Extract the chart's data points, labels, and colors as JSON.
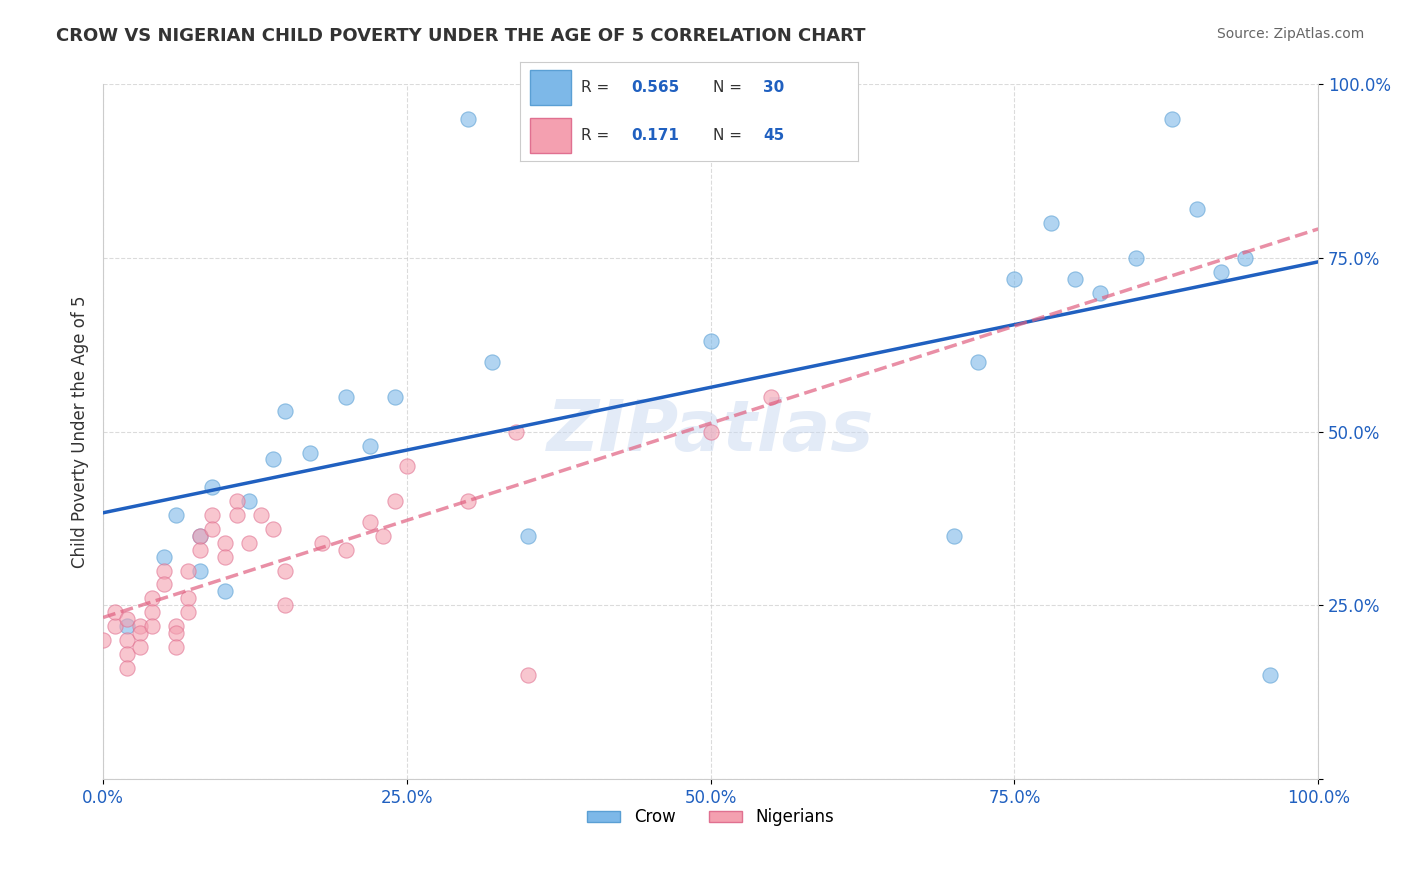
{
  "title": "CROW VS NIGERIAN CHILD POVERTY UNDER THE AGE OF 5 CORRELATION CHART",
  "source": "Source: ZipAtlas.com",
  "ylabel": "Child Poverty Under the Age of 5",
  "xlabel": "",
  "watermark": "ZIPatlas",
  "xlim": [
    0.0,
    1.0
  ],
  "ylim": [
    0.0,
    1.0
  ],
  "xticks": [
    0.0,
    0.25,
    0.5,
    0.75,
    1.0
  ],
  "yticks": [
    0.0,
    0.25,
    0.5,
    0.75,
    1.0
  ],
  "xticklabels": [
    "0.0%",
    "25.0%",
    "50.0%",
    "75.0%",
    "100.0%"
  ],
  "yticklabels": [
    "",
    "25.0%",
    "50.0%",
    "75.0%",
    "100.0%"
  ],
  "crow_color": "#7db8e8",
  "nigerian_color": "#f4a0b0",
  "crow_edge_color": "#5a9fd4",
  "nigerian_edge_color": "#e07090",
  "crow_line_color": "#2060c0",
  "nigerian_line_color": "#e06080",
  "grid_color": "#cccccc",
  "background_color": "#ffffff",
  "crow_R": 0.565,
  "crow_N": 30,
  "nigerian_R": 0.171,
  "nigerian_N": 45,
  "legend_label_crow": "Crow",
  "legend_label_nigerian": "Nigerians",
  "title_color": "#333333",
  "source_color": "#666666",
  "tick_color": "#2060c0",
  "legend_R_color": "#2060c0",
  "legend_N_color": "#2060c0",
  "crow_scatter_x": [
    0.02,
    0.05,
    0.06,
    0.08,
    0.08,
    0.09,
    0.1,
    0.12,
    0.14,
    0.15,
    0.17,
    0.2,
    0.22,
    0.24,
    0.32,
    0.35,
    0.5,
    0.7,
    0.72,
    0.75,
    0.78,
    0.8,
    0.82,
    0.85,
    0.88,
    0.9,
    0.92,
    0.94,
    0.96,
    0.3
  ],
  "crow_scatter_y": [
    0.22,
    0.32,
    0.38,
    0.35,
    0.3,
    0.42,
    0.27,
    0.4,
    0.46,
    0.53,
    0.47,
    0.55,
    0.48,
    0.55,
    0.6,
    0.35,
    0.63,
    0.35,
    0.6,
    0.72,
    0.8,
    0.72,
    0.7,
    0.75,
    0.95,
    0.82,
    0.73,
    0.75,
    0.15,
    0.95
  ],
  "nigerian_scatter_x": [
    0.0,
    0.01,
    0.01,
    0.02,
    0.02,
    0.02,
    0.02,
    0.03,
    0.03,
    0.03,
    0.04,
    0.04,
    0.04,
    0.05,
    0.05,
    0.06,
    0.06,
    0.06,
    0.07,
    0.07,
    0.07,
    0.08,
    0.08,
    0.09,
    0.09,
    0.1,
    0.1,
    0.11,
    0.11,
    0.12,
    0.13,
    0.14,
    0.15,
    0.15,
    0.18,
    0.2,
    0.22,
    0.23,
    0.24,
    0.25,
    0.3,
    0.34,
    0.35,
    0.5,
    0.55
  ],
  "nigerian_scatter_y": [
    0.2,
    0.22,
    0.24,
    0.23,
    0.2,
    0.18,
    0.16,
    0.22,
    0.21,
    0.19,
    0.26,
    0.24,
    0.22,
    0.3,
    0.28,
    0.22,
    0.21,
    0.19,
    0.3,
    0.26,
    0.24,
    0.35,
    0.33,
    0.38,
    0.36,
    0.34,
    0.32,
    0.4,
    0.38,
    0.34,
    0.38,
    0.36,
    0.3,
    0.25,
    0.34,
    0.33,
    0.37,
    0.35,
    0.4,
    0.45,
    0.4,
    0.5,
    0.15,
    0.5,
    0.55
  ],
  "marker_size": 120,
  "marker_alpha": 0.6,
  "line_width": 2.5
}
